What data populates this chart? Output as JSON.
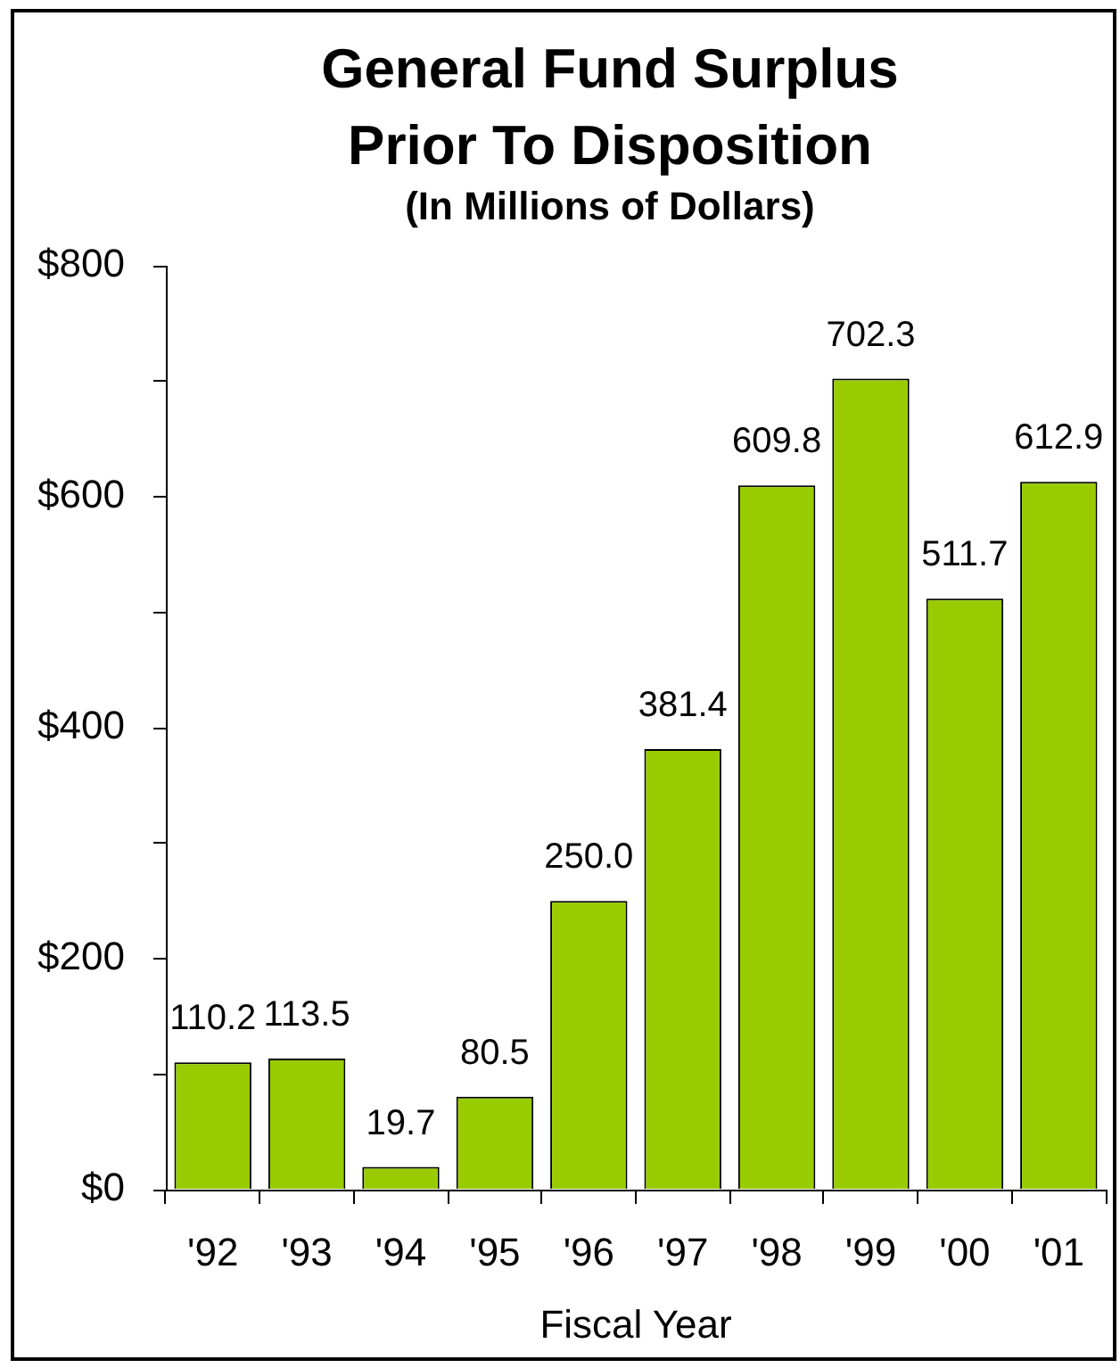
{
  "chart_data": {
    "type": "bar",
    "title": "General Fund Surplus Prior To Disposition",
    "subtitle": "(In Millions of Dollars)",
    "xlabel": "Fiscal Year",
    "categories": [
      "'92",
      "'93",
      "'94",
      "'95",
      "'96",
      "'97",
      "'98",
      "'99",
      "'00",
      "'01"
    ],
    "values": [
      110.2,
      113.5,
      19.7,
      80.5,
      250.0,
      381.4,
      609.8,
      702.3,
      511.7,
      612.9
    ],
    "value_labels": [
      "110.2",
      "113.5",
      "19.7",
      "80.5",
      "250.0",
      "381.4",
      "609.8",
      "702.3",
      "511.7",
      "612.9"
    ],
    "color": "#99cc00",
    "ylim": [
      0,
      800
    ],
    "yticks": [
      {
        "value": 0,
        "label": "$0"
      },
      {
        "value": 100,
        "label": null
      },
      {
        "value": 200,
        "label": "$200"
      },
      {
        "value": 300,
        "label": null
      },
      {
        "value": 400,
        "label": "$400"
      },
      {
        "value": 500,
        "label": null
      },
      {
        "value": 600,
        "label": "$600"
      },
      {
        "value": 700,
        "label": null
      },
      {
        "value": 800,
        "label": "$800"
      }
    ]
  }
}
